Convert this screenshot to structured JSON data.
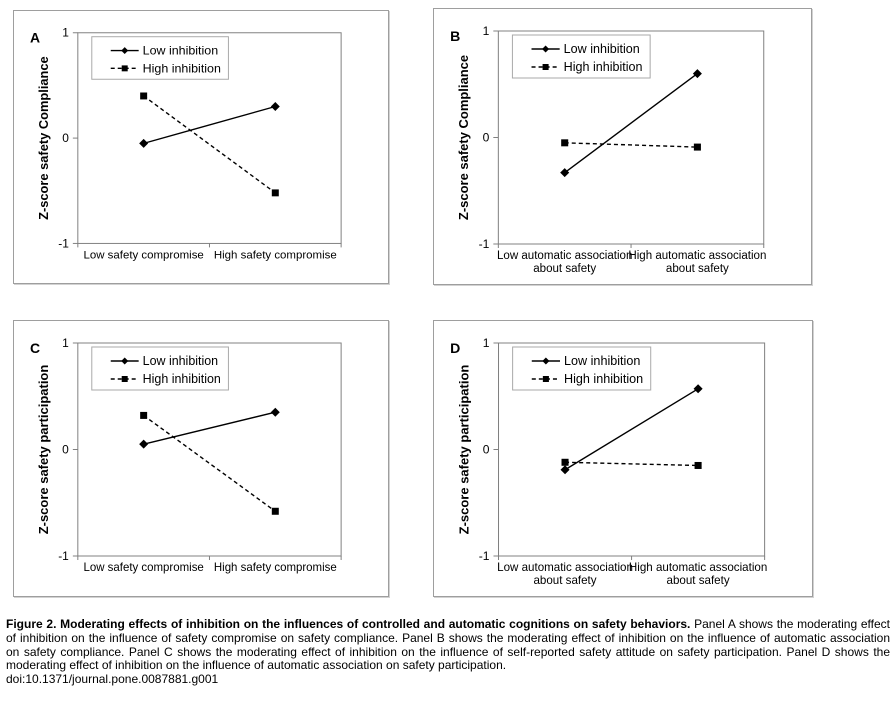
{
  "colors": {
    "series": "#000000",
    "axis": "#808080",
    "legend_border": "#a9a9a9",
    "panel_border": "#9e9e9e",
    "background": "#ffffff",
    "text": "#000000"
  },
  "chart_data": [
    {
      "type": "line",
      "panel": "A",
      "title": "",
      "xlabel": "",
      "ylabel": "Z-score safety Compliance",
      "ylim": [
        -1,
        1
      ],
      "yticks": [
        1,
        0,
        -1
      ],
      "grid": false,
      "legend_position": "top-left-inside",
      "categories": [
        "Low safety compromise",
        "High safety compromise"
      ],
      "category_lines": [
        [
          "Low safety compromise"
        ],
        [
          "High safety compromise"
        ]
      ],
      "series": [
        {
          "name": "Low inhibition",
          "line": "solid",
          "marker": "diamond",
          "values": [
            -0.05,
            0.3
          ]
        },
        {
          "name": "High inhibition",
          "line": "dashed",
          "marker": "square",
          "values": [
            0.4,
            -0.52
          ]
        }
      ]
    },
    {
      "type": "line",
      "panel": "B",
      "title": "",
      "xlabel": "",
      "ylabel": "Z-score safety Compliance",
      "ylim": [
        -1,
        1
      ],
      "yticks": [
        1,
        0,
        -1
      ],
      "grid": false,
      "legend_position": "top-left-inside",
      "categories": [
        "Low automatic association about safety",
        "High automatic association about safety"
      ],
      "category_lines": [
        [
          "Low automatic association",
          "about safety"
        ],
        [
          "High automatic association",
          "about safety"
        ]
      ],
      "series": [
        {
          "name": "Low inhibition",
          "line": "solid",
          "marker": "diamond",
          "values": [
            -0.33,
            0.6
          ]
        },
        {
          "name": "High inhibition",
          "line": "dashed",
          "marker": "square",
          "values": [
            -0.05,
            -0.09
          ]
        }
      ]
    },
    {
      "type": "line",
      "panel": "C",
      "title": "",
      "xlabel": "",
      "ylabel": "Z-score safety participation",
      "ylim": [
        -1,
        1
      ],
      "yticks": [
        1,
        0,
        -1
      ],
      "grid": false,
      "legend_position": "top-left-inside",
      "categories": [
        "Low safety compromise",
        "High safety compromise"
      ],
      "category_lines": [
        [
          "Low safety compromise"
        ],
        [
          "High safety compromise"
        ]
      ],
      "series": [
        {
          "name": "Low inhibition",
          "line": "solid",
          "marker": "diamond",
          "values": [
            0.05,
            0.35
          ]
        },
        {
          "name": "High inhibition",
          "line": "dashed",
          "marker": "square",
          "values": [
            0.32,
            -0.58
          ]
        }
      ]
    },
    {
      "type": "line",
      "panel": "D",
      "title": "",
      "xlabel": "",
      "ylabel": "Z-score safety participation",
      "ylim": [
        -1,
        1
      ],
      "yticks": [
        1,
        0,
        -1
      ],
      "grid": false,
      "legend_position": "top-left-inside",
      "categories": [
        "Low automatic association about safety",
        "High automatic association about safety"
      ],
      "category_lines": [
        [
          "Low automatic association",
          "about safety"
        ],
        [
          "High automatic association",
          "about safety"
        ]
      ],
      "series": [
        {
          "name": "Low inhibition",
          "line": "solid",
          "marker": "diamond",
          "values": [
            -0.19,
            0.57
          ]
        },
        {
          "name": "High inhibition",
          "line": "dashed",
          "marker": "square",
          "values": [
            -0.12,
            -0.15
          ]
        }
      ]
    }
  ],
  "caption": {
    "bold": "Figure 2. Moderating effects of inhibition on the influences of controlled and automatic cognitions on safety behaviors.",
    "body": "Panel A shows the moderating effect of inhibition on the influence of safety compromise on safety compliance. Panel B shows the moderating effect of inhibition on the influence of automatic association on safety compliance. Panel C shows the moderating effect of inhibition on the influence of self-reported safety attitude on safety participation. Panel D shows the moderating effect of inhibition on the influence of automatic association on safety participation.",
    "doi": "doi:10.1371/journal.pone.0087881.g001"
  }
}
